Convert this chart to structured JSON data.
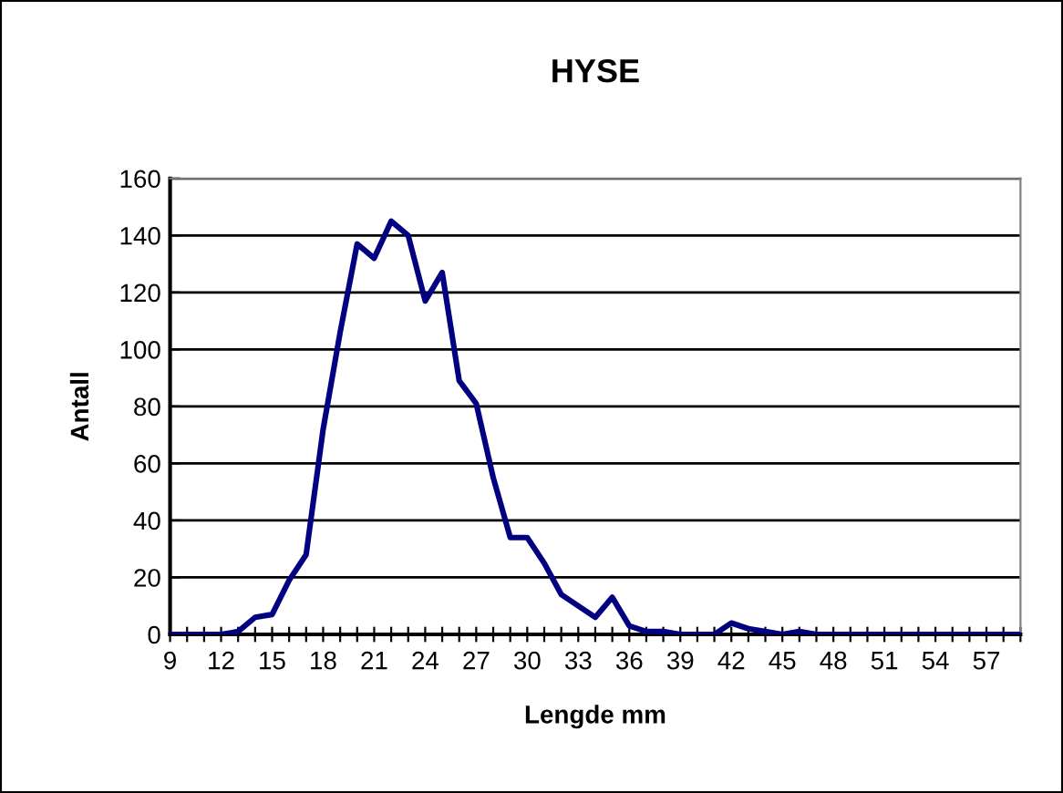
{
  "chart_data": {
    "type": "line",
    "title": "HYSE",
    "xlabel": "Lengde mm",
    "ylabel": "Antall",
    "x": [
      9,
      10,
      11,
      12,
      13,
      14,
      15,
      16,
      17,
      18,
      19,
      20,
      21,
      22,
      23,
      24,
      25,
      26,
      27,
      28,
      29,
      30,
      31,
      32,
      33,
      34,
      35,
      36,
      37,
      38,
      39,
      40,
      41,
      42,
      43,
      44,
      45,
      46,
      47,
      48,
      49,
      50,
      51,
      52,
      53,
      54,
      55,
      56,
      57,
      58,
      59
    ],
    "series": [
      {
        "color": "#000080",
        "values": [
          0,
          0,
          0,
          0,
          1,
          6,
          7,
          19,
          28,
          72,
          106,
          137,
          132,
          145,
          140,
          117,
          127,
          89,
          81,
          55,
          34,
          34,
          25,
          14,
          10,
          6,
          13,
          3,
          1,
          1,
          0,
          0,
          0,
          4,
          2,
          1,
          0,
          1,
          0,
          0,
          0,
          0,
          0,
          0,
          0,
          0,
          0,
          0,
          0,
          0,
          0
        ]
      }
    ],
    "xlim": [
      9,
      59
    ],
    "xticks": [
      9,
      {
        "value": 10,
        "label": null
      },
      {
        "value": 11,
        "label": null
      },
      12,
      {
        "value": 13,
        "label": null
      },
      {
        "value": 14,
        "label": null
      },
      15,
      {
        "value": 16,
        "label": null
      },
      {
        "value": 17,
        "label": null
      },
      18,
      {
        "value": 19,
        "label": null
      },
      {
        "value": 20,
        "label": null
      },
      21,
      {
        "value": 22,
        "label": null
      },
      {
        "value": 23,
        "label": null
      },
      24,
      {
        "value": 25,
        "label": null
      },
      {
        "value": 26,
        "label": null
      },
      27,
      {
        "value": 28,
        "label": null
      },
      {
        "value": 29,
        "label": null
      },
      30,
      {
        "value": 31,
        "label": null
      },
      {
        "value": 32,
        "label": null
      },
      33,
      {
        "value": 34,
        "label": null
      },
      {
        "value": 35,
        "label": null
      },
      36,
      {
        "value": 37,
        "label": null
      },
      {
        "value": 38,
        "label": null
      },
      39,
      {
        "value": 40,
        "label": null
      },
      {
        "value": 41,
        "label": null
      },
      42,
      {
        "value": 43,
        "label": null
      },
      {
        "value": 44,
        "label": null
      },
      45,
      {
        "value": 46,
        "label": null
      },
      {
        "value": 47,
        "label": null
      },
      48,
      {
        "value": 49,
        "label": null
      },
      {
        "value": 50,
        "label": null
      },
      51,
      {
        "value": 52,
        "label": null
      },
      {
        "value": 53,
        "label": null
      },
      54,
      {
        "value": 55,
        "label": null
      },
      {
        "value": 56,
        "label": null
      },
      57,
      {
        "value": 58,
        "label": null
      },
      {
        "value": 59,
        "label": null
      }
    ],
    "ylim": [
      0,
      160
    ],
    "yticks": [
      0,
      20,
      40,
      60,
      80,
      100,
      120,
      140,
      160
    ],
    "grid": "y",
    "marker": "none",
    "line_style": "solid",
    "legend": false
  }
}
